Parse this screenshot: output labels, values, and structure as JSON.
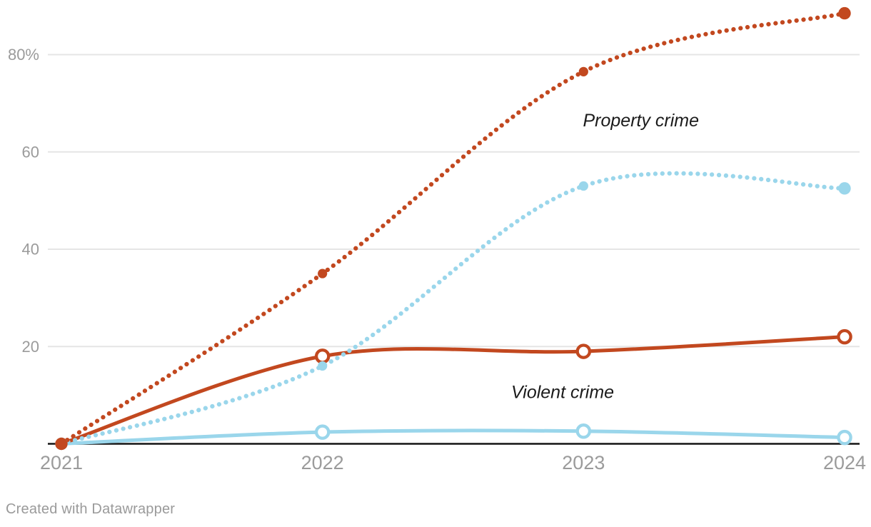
{
  "footer": {
    "credit": "Created with Datawrapper"
  },
  "chart_data": {
    "type": "line",
    "x": [
      2021,
      2022,
      2023,
      2024
    ],
    "x_tick_labels": [
      "2021",
      "2022",
      "2023",
      "2024"
    ],
    "y_ticks": [
      {
        "value": 20,
        "label": "20"
      },
      {
        "value": 40,
        "label": "40"
      },
      {
        "value": 60,
        "label": "60"
      },
      {
        "value": 80,
        "label": "80%"
      }
    ],
    "ylim": [
      0,
      90
    ],
    "grid": "horizontal",
    "colors": {
      "red": "#c2481f",
      "light_blue": "#9ad6eb",
      "gridline": "#e5e5e5",
      "axis_line": "#141414",
      "tick_text": "#9b9b9b",
      "annotation_text": "#1b1b1b"
    },
    "series": [
      {
        "id": "blue-solid",
        "color_key": "light_blue",
        "style": "solid",
        "marker": "open",
        "values": [
          0,
          2.4,
          2.6,
          1.3
        ]
      },
      {
        "id": "red-solid",
        "color_key": "red",
        "style": "solid",
        "marker": "open",
        "values": [
          0,
          18,
          19,
          22
        ]
      },
      {
        "id": "blue-dotted",
        "color_key": "light_blue",
        "style": "dotted",
        "marker": "filled",
        "values": [
          0,
          16,
          53,
          52.5
        ]
      },
      {
        "id": "red-dotted",
        "color_key": "red",
        "style": "dotted",
        "marker": "filled",
        "values": [
          0,
          35,
          76.5,
          88.5
        ]
      }
    ],
    "annotations": [
      {
        "text": "Property crime",
        "x": 2023.22,
        "y": 66.4
      },
      {
        "text": "Violent crime",
        "x": 2022.92,
        "y": 10.6
      }
    ]
  }
}
